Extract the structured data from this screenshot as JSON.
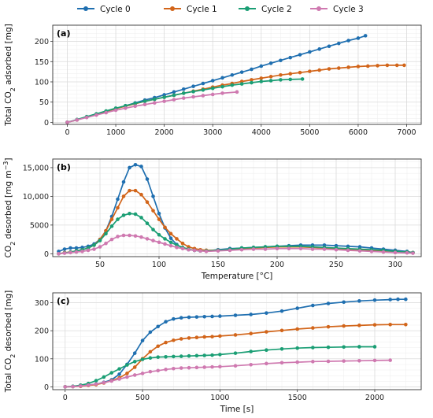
{
  "legend": {
    "position": "top",
    "items": [
      {
        "label": "Cycle 0",
        "color": "#1f6fb0"
      },
      {
        "label": "Cycle 1",
        "color": "#d2651a"
      },
      {
        "label": "Cycle 2",
        "color": "#1a9e74"
      },
      {
        "label": "Cycle 3",
        "color": "#cf79b0"
      }
    ]
  },
  "chart_data": [
    {
      "panel": "(a)",
      "type": "line",
      "xlabel": "",
      "ylabel": "Total CO$_2$ adsorbed [mg]",
      "xlim": [
        -300,
        7300
      ],
      "ylim": [
        -5,
        240
      ],
      "xticks": [
        0,
        1000,
        2000,
        3000,
        4000,
        5000,
        6000,
        7000
      ],
      "yticks": [
        0,
        50,
        100,
        150,
        200
      ],
      "grid": true,
      "series": [
        {
          "name": "Cycle 0",
          "x": [
            0,
            200,
            400,
            600,
            800,
            1000,
            1200,
            1400,
            1600,
            1800,
            2000,
            2200,
            2400,
            2600,
            2800,
            3000,
            3200,
            3400,
            3600,
            3800,
            4000,
            4200,
            4400,
            4600,
            4800,
            5000,
            5200,
            5400,
            5600,
            5800,
            6000,
            6150
          ],
          "y": [
            0,
            6,
            13,
            20,
            27,
            34,
            41,
            48,
            55,
            61,
            68,
            75,
            82,
            89,
            96,
            103,
            110,
            117,
            124,
            131,
            139,
            146,
            153,
            160,
            167,
            174,
            181,
            188,
            195,
            202,
            208,
            214
          ]
        },
        {
          "name": "Cycle 1",
          "x": [
            0,
            200,
            400,
            600,
            800,
            1000,
            1200,
            1400,
            1600,
            1800,
            2000,
            2200,
            2400,
            2600,
            2800,
            3000,
            3200,
            3400,
            3600,
            3800,
            4000,
            4200,
            4400,
            4600,
            4800,
            5000,
            5200,
            5400,
            5600,
            5800,
            6000,
            6200,
            6400,
            6600,
            6800,
            6950
          ],
          "y": [
            0,
            6,
            13,
            20,
            27,
            34,
            40,
            46,
            52,
            57,
            62,
            67,
            72,
            77,
            82,
            87,
            92,
            96,
            101,
            105,
            109,
            113,
            117,
            120,
            123,
            126,
            129,
            132,
            134,
            136,
            138,
            139,
            140,
            141,
            141,
            141
          ]
        },
        {
          "name": "Cycle 2",
          "x": [
            0,
            200,
            400,
            600,
            800,
            1000,
            1200,
            1400,
            1600,
            1800,
            2000,
            2200,
            2400,
            2600,
            2800,
            3000,
            3200,
            3400,
            3600,
            3800,
            4000,
            4200,
            4400,
            4600,
            4850
          ],
          "y": [
            0,
            7,
            14,
            21,
            28,
            35,
            41,
            47,
            52,
            57,
            62,
            67,
            72,
            76,
            80,
            84,
            88,
            92,
            95,
            98,
            101,
            103,
            105,
            106,
            107
          ]
        },
        {
          "name": "Cycle 3",
          "x": [
            0,
            200,
            400,
            600,
            800,
            1000,
            1200,
            1400,
            1600,
            1800,
            2000,
            2200,
            2400,
            2600,
            2800,
            3000,
            3200,
            3500
          ],
          "y": [
            0,
            6,
            12,
            18,
            24,
            30,
            35,
            40,
            44,
            48,
            52,
            56,
            60,
            63,
            66,
            69,
            72,
            75
          ]
        }
      ]
    },
    {
      "panel": "(b)",
      "type": "line",
      "xlabel": "Temperature [°C]",
      "ylabel": "CO$_2$ desorbed [mg m$^{-3}$]",
      "xlim": [
        10,
        322
      ],
      "ylim": [
        -500,
        16500
      ],
      "xticks": [
        50,
        100,
        150,
        200,
        250,
        300
      ],
      "yticks": [
        0,
        5000,
        10000,
        15000
      ],
      "ytick_labels": [
        "0",
        "5000",
        "10,000",
        "15,000"
      ],
      "grid": true,
      "series": [
        {
          "name": "Cycle 0",
          "x": [
            15,
            20,
            25,
            30,
            35,
            40,
            45,
            50,
            55,
            60,
            65,
            70,
            75,
            80,
            85,
            90,
            95,
            100,
            105,
            110,
            115,
            120,
            125,
            130,
            135,
            140,
            150,
            160,
            170,
            180,
            190,
            200,
            210,
            220,
            230,
            240,
            250,
            260,
            270,
            280,
            290,
            300,
            310,
            315
          ],
          "y": [
            400,
            800,
            1000,
            1000,
            1100,
            1300,
            1700,
            2500,
            4000,
            6500,
            9500,
            12500,
            15000,
            15500,
            15200,
            13000,
            10000,
            7000,
            4500,
            2700,
            1600,
            1000,
            700,
            600,
            500,
            500,
            700,
            900,
            1000,
            1100,
            1200,
            1300,
            1400,
            1500,
            1500,
            1500,
            1400,
            1300,
            1200,
            1000,
            800,
            600,
            400,
            200
          ]
        },
        {
          "name": "Cycle 1",
          "x": [
            15,
            20,
            25,
            30,
            35,
            40,
            45,
            50,
            55,
            60,
            65,
            70,
            75,
            80,
            85,
            90,
            95,
            100,
            105,
            110,
            115,
            120,
            125,
            130,
            135,
            140,
            150,
            160,
            170,
            180,
            190,
            200,
            210,
            220,
            230,
            240,
            250,
            260,
            270,
            280,
            290,
            300,
            310,
            315
          ],
          "y": [
            0,
            200,
            300,
            500,
            700,
            1000,
            1500,
            2500,
            4000,
            6000,
            8000,
            10000,
            11000,
            11000,
            10300,
            9000,
            7500,
            6000,
            4600,
            3500,
            2600,
            1800,
            1200,
            900,
            700,
            600,
            600,
            700,
            900,
            1000,
            1100,
            1200,
            1200,
            1200,
            1100,
            1000,
            900,
            800,
            700,
            600,
            500,
            400,
            300,
            200
          ]
        },
        {
          "name": "Cycle 2",
          "x": [
            15,
            20,
            25,
            30,
            35,
            40,
            45,
            50,
            55,
            60,
            65,
            70,
            75,
            80,
            85,
            90,
            95,
            100,
            105,
            110,
            115,
            120,
            125,
            130,
            135,
            140,
            150,
            160,
            170,
            180,
            190,
            200,
            210,
            220,
            230,
            240,
            250,
            260,
            270,
            280,
            290,
            300,
            310,
            315
          ],
          "y": [
            0,
            150,
            300,
            500,
            700,
            1000,
            1500,
            2300,
            3500,
            4800,
            6000,
            6700,
            7000,
            6900,
            6300,
            5300,
            4200,
            3300,
            2600,
            2000,
            1500,
            1100,
            800,
            600,
            500,
            500,
            600,
            800,
            1000,
            1100,
            1200,
            1300,
            1300,
            1300,
            1200,
            1100,
            1000,
            900,
            800,
            700,
            600,
            400,
            300,
            200
          ]
        },
        {
          "name": "Cycle 3",
          "x": [
            15,
            20,
            25,
            30,
            35,
            40,
            45,
            50,
            55,
            60,
            65,
            70,
            75,
            80,
            85,
            90,
            95,
            100,
            105,
            110,
            115,
            120,
            125,
            130,
            135,
            140,
            150,
            160,
            170,
            180,
            190,
            200,
            210,
            220,
            230,
            240,
            250,
            260,
            270,
            280,
            290,
            300,
            310,
            315
          ],
          "y": [
            0,
            100,
            200,
            300,
            400,
            600,
            800,
            1200,
            1800,
            2500,
            3000,
            3200,
            3200,
            3100,
            2900,
            2600,
            2300,
            2000,
            1700,
            1400,
            1100,
            900,
            700,
            600,
            500,
            400,
            500,
            600,
            700,
            800,
            800,
            900,
            900,
            900,
            800,
            800,
            700,
            600,
            500,
            400,
            300,
            200,
            150,
            100
          ]
        }
      ]
    },
    {
      "panel": "(c)",
      "type": "line",
      "xlabel": "Time [s]",
      "ylabel": "Total CO$_2$ desorbed [mg]",
      "xlim": [
        -80,
        2300
      ],
      "ylim": [
        -10,
        335
      ],
      "xticks": [
        0,
        500,
        1000,
        1500,
        2000
      ],
      "yticks": [
        0,
        100,
        200,
        300
      ],
      "grid": true,
      "series": [
        {
          "name": "Cycle 0",
          "x": [
            0,
            50,
            100,
            150,
            200,
            250,
            300,
            350,
            400,
            450,
            500,
            550,
            600,
            650,
            700,
            750,
            800,
            850,
            900,
            950,
            1000,
            1100,
            1200,
            1300,
            1400,
            1500,
            1600,
            1700,
            1800,
            1900,
            2000,
            2100,
            2150,
            2200
          ],
          "y": [
            0,
            1,
            3,
            6,
            10,
            16,
            25,
            45,
            80,
            120,
            165,
            195,
            215,
            232,
            242,
            246,
            248,
            249,
            250,
            251,
            252,
            255,
            258,
            263,
            270,
            280,
            290,
            297,
            302,
            306,
            309,
            311,
            312,
            312
          ]
        },
        {
          "name": "Cycle 1",
          "x": [
            0,
            50,
            100,
            150,
            200,
            250,
            300,
            350,
            400,
            450,
            500,
            550,
            600,
            650,
            700,
            750,
            800,
            850,
            900,
            950,
            1000,
            1100,
            1200,
            1300,
            1400,
            1500,
            1600,
            1700,
            1800,
            1900,
            2000,
            2100,
            2200
          ],
          "y": [
            0,
            1,
            2,
            5,
            8,
            14,
            22,
            32,
            48,
            70,
            100,
            125,
            145,
            158,
            166,
            171,
            174,
            176,
            178,
            179,
            181,
            185,
            190,
            196,
            201,
            206,
            210,
            214,
            217,
            219,
            221,
            222,
            222
          ]
        },
        {
          "name": "Cycle 2",
          "x": [
            0,
            50,
            100,
            150,
            200,
            250,
            300,
            350,
            400,
            450,
            500,
            550,
            600,
            650,
            700,
            750,
            800,
            850,
            900,
            950,
            1000,
            1100,
            1200,
            1300,
            1400,
            1500,
            1600,
            1700,
            1800,
            1900,
            2000
          ],
          "y": [
            0,
            2,
            6,
            12,
            22,
            35,
            50,
            64,
            78,
            90,
            98,
            103,
            106,
            107,
            108,
            109,
            110,
            111,
            112,
            113,
            115,
            120,
            126,
            131,
            135,
            138,
            140,
            141,
            142,
            143,
            143
          ]
        },
        {
          "name": "Cycle 3",
          "x": [
            0,
            50,
            100,
            150,
            200,
            250,
            300,
            350,
            400,
            450,
            500,
            550,
            600,
            650,
            700,
            750,
            800,
            850,
            900,
            950,
            1000,
            1100,
            1200,
            1300,
            1400,
            1500,
            1600,
            1700,
            1800,
            1900,
            2000,
            2100
          ],
          "y": [
            0,
            1,
            3,
            6,
            10,
            15,
            21,
            28,
            35,
            42,
            48,
            54,
            58,
            62,
            65,
            67,
            68,
            69,
            70,
            71,
            72,
            75,
            79,
            83,
            86,
            88,
            90,
            91,
            92,
            93,
            94,
            95
          ]
        }
      ]
    }
  ]
}
